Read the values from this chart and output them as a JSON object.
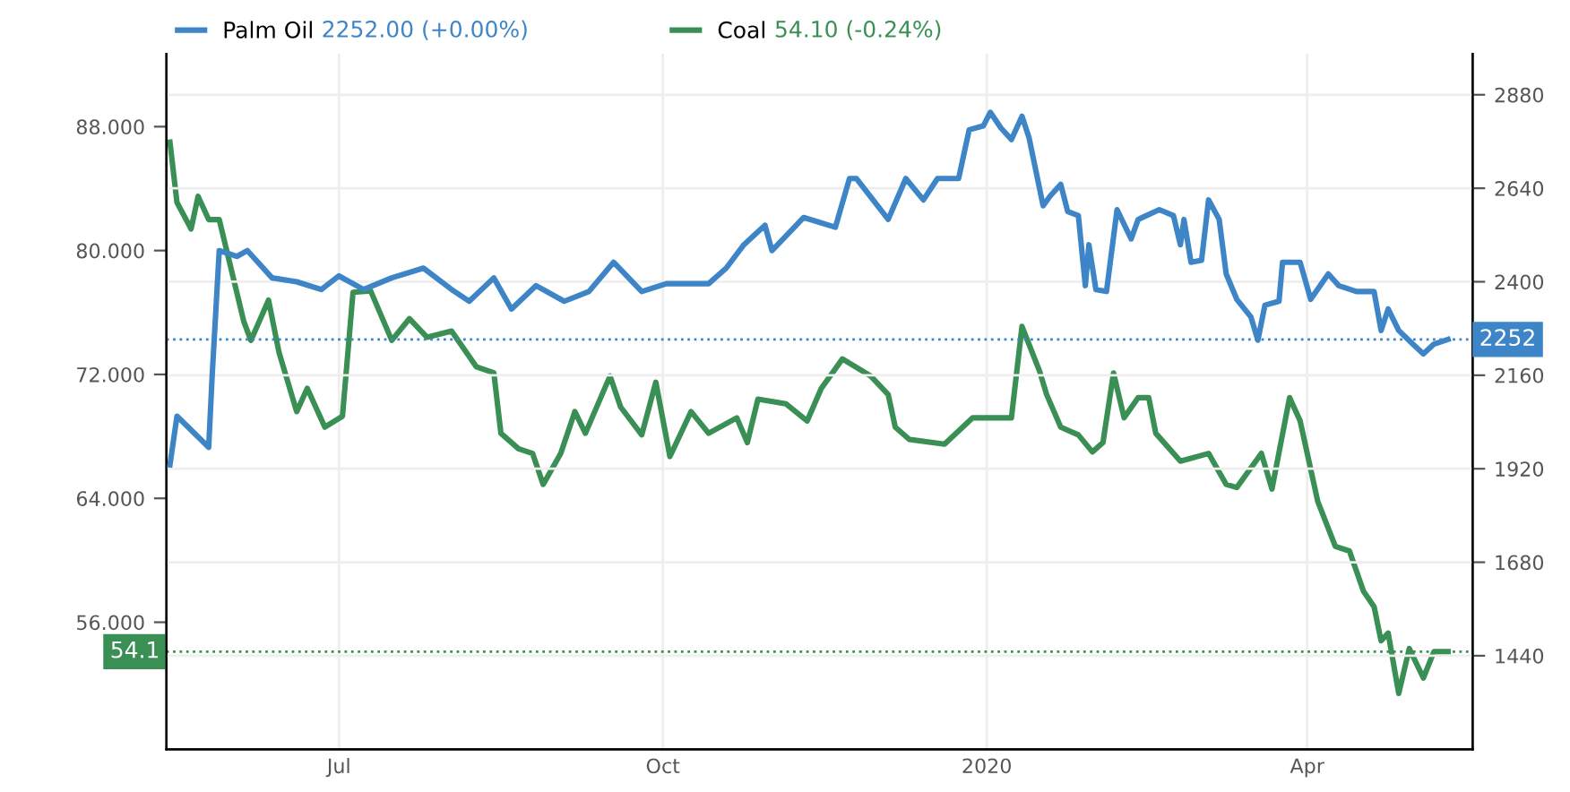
{
  "chart_data": {
    "type": "line",
    "xlim": [
      "2019-05-13",
      "2020-05-18"
    ],
    "xticks": [
      {
        "value": "2019-07-01",
        "label": "Jul"
      },
      {
        "value": "2019-10-01",
        "label": "Oct"
      },
      {
        "value": "2020-01-01",
        "label": "2020"
      },
      {
        "value": "2020-04-01",
        "label": "Apr"
      }
    ],
    "ylim": [
      47.8,
      92.7
    ],
    "yticks": [
      {
        "value": 56,
        "label": "56.000"
      },
      {
        "value": 64,
        "label": "64.000"
      },
      {
        "value": 72,
        "label": "72.000"
      },
      {
        "value": 80,
        "label": "80.000"
      },
      {
        "value": 88,
        "label": "88.000"
      }
    ],
    "y2lim": [
      1200,
      2985
    ],
    "y2ticks": [
      1440,
      1680,
      1920,
      2160,
      2400,
      2640,
      2880
    ],
    "grid": true,
    "legend": "top left",
    "marker": "none",
    "line_style": "solid",
    "annotations": [
      "2252.00 (+0.00%)",
      "54.10 (-0.24%)"
    ],
    "ref_lines": [
      {
        "axis": "y2",
        "value": 2252,
        "label": "2252",
        "color": "#3d85c6",
        "line_style": "dotted"
      },
      {
        "axis": "y",
        "value": 54.1,
        "label": "54.1",
        "color": "#3a8f55",
        "line_style": "dotted"
      }
    ],
    "series": [
      {
        "name": "Palm Oil",
        "color": "#3d85c6",
        "axis": "y2",
        "x": [
          "2019-05-14",
          "2019-05-16",
          "2019-05-25",
          "2019-05-26",
          "2019-05-28",
          "2019-06-02",
          "2019-06-05",
          "2019-06-12",
          "2019-06-19",
          "2019-06-26",
          "2019-07-01",
          "2019-07-08",
          "2019-07-16",
          "2019-07-25",
          "2019-08-02",
          "2019-08-07",
          "2019-08-14",
          "2019-08-19",
          "2019-08-26",
          "2019-09-03",
          "2019-09-10",
          "2019-09-17",
          "2019-09-25",
          "2019-10-02",
          "2019-10-14",
          "2019-10-19",
          "2019-10-24",
          "2019-10-30",
          "2019-11-01",
          "2019-11-10",
          "2019-11-19",
          "2019-11-23",
          "2019-11-25",
          "2019-12-04",
          "2019-12-09",
          "2019-12-14",
          "2019-12-18",
          "2019-12-24",
          "2019-12-27",
          "2019-12-31",
          "2020-01-02",
          "2020-01-05",
          "2020-01-08",
          "2020-01-11",
          "2020-01-13",
          "2020-01-17",
          "2020-01-19",
          "2020-01-22",
          "2020-01-24",
          "2020-01-27",
          "2020-01-29",
          "2020-01-30",
          "2020-02-01",
          "2020-02-04",
          "2020-02-07",
          "2020-02-11",
          "2020-02-13",
          "2020-02-19",
          "2020-02-23",
          "2020-02-25",
          "2020-02-26",
          "2020-02-28",
          "2020-03-02",
          "2020-03-04",
          "2020-03-07",
          "2020-03-09",
          "2020-03-12",
          "2020-03-16",
          "2020-03-18",
          "2020-03-20",
          "2020-03-24",
          "2020-03-25",
          "2020-03-30",
          "2020-04-02",
          "2020-04-07",
          "2020-04-10",
          "2020-04-15",
          "2020-04-20",
          "2020-04-22",
          "2020-04-24",
          "2020-04-27",
          "2020-05-01",
          "2020-05-04",
          "2020-05-07",
          "2020-05-11"
        ],
        "values": [
          1930,
          2055,
          1975,
          2160,
          2480,
          2465,
          2480,
          2410,
          2400,
          2380,
          2415,
          2380,
          2410,
          2435,
          2380,
          2350,
          2410,
          2330,
          2390,
          2350,
          2375,
          2450,
          2375,
          2395,
          2395,
          2435,
          2495,
          2545,
          2480,
          2565,
          2540,
          2665,
          2665,
          2560,
          2665,
          2610,
          2665,
          2665,
          2790,
          2800,
          2835,
          2795,
          2765,
          2825,
          2770,
          2595,
          2620,
          2650,
          2580,
          2570,
          2390,
          2495,
          2380,
          2375,
          2585,
          2510,
          2560,
          2585,
          2570,
          2495,
          2560,
          2450,
          2455,
          2610,
          2560,
          2420,
          2355,
          2310,
          2250,
          2340,
          2350,
          2450,
          2450,
          2355,
          2420,
          2390,
          2375,
          2375,
          2275,
          2330,
          2275,
          2240,
          2215,
          2240,
          2252
        ]
      },
      {
        "name": "Coal",
        "color": "#3a8f55",
        "axis": "y",
        "x": [
          "2019-05-14",
          "2019-05-16",
          "2019-05-20",
          "2019-05-22",
          "2019-05-25",
          "2019-05-28",
          "2019-06-04",
          "2019-06-06",
          "2019-06-11",
          "2019-06-14",
          "2019-06-19",
          "2019-06-22",
          "2019-06-27",
          "2019-07-02",
          "2019-07-05",
          "2019-07-10",
          "2019-07-16",
          "2019-07-21",
          "2019-07-26",
          "2019-08-02",
          "2019-08-09",
          "2019-08-14",
          "2019-08-16",
          "2019-08-21",
          "2019-08-25",
          "2019-08-28",
          "2019-09-02",
          "2019-09-06",
          "2019-09-09",
          "2019-09-16",
          "2019-09-19",
          "2019-09-25",
          "2019-09-29",
          "2019-10-03",
          "2019-10-09",
          "2019-10-14",
          "2019-10-22",
          "2019-10-25",
          "2019-10-28",
          "2019-11-05",
          "2019-11-11",
          "2019-11-15",
          "2019-11-21",
          "2019-11-29",
          "2019-12-04",
          "2019-12-06",
          "2019-12-10",
          "2019-12-20",
          "2019-12-28",
          "2020-01-08",
          "2020-01-11",
          "2020-01-16",
          "2020-01-18",
          "2020-01-22",
          "2020-01-27",
          "2020-01-31",
          "2020-02-03",
          "2020-02-06",
          "2020-02-09",
          "2020-02-13",
          "2020-02-16",
          "2020-02-18",
          "2020-02-25",
          "2020-03-04",
          "2020-03-09",
          "2020-03-12",
          "2020-03-19",
          "2020-03-22",
          "2020-03-27",
          "2020-03-30",
          "2020-04-04",
          "2020-04-09",
          "2020-04-13",
          "2020-04-17",
          "2020-04-20",
          "2020-04-22",
          "2020-04-24",
          "2020-04-27",
          "2020-04-30",
          "2020-05-04",
          "2020-05-07",
          "2020-05-11"
        ],
        "values": [
          87.0,
          83.1,
          81.4,
          83.5,
          82.0,
          82.0,
          75.4,
          74.2,
          76.8,
          73.4,
          69.6,
          71.1,
          68.6,
          69.3,
          77.3,
          77.4,
          74.2,
          75.6,
          74.4,
          74.8,
          72.5,
          72.1,
          68.2,
          67.2,
          66.9,
          64.9,
          66.9,
          69.6,
          68.2,
          71.9,
          69.9,
          68.1,
          71.5,
          66.7,
          69.6,
          68.2,
          69.2,
          67.6,
          70.4,
          70.1,
          69.0,
          71.1,
          73.0,
          71.9,
          70.7,
          68.6,
          67.8,
          67.5,
          69.2,
          69.2,
          75.1,
          72.2,
          70.7,
          68.6,
          68.1,
          67.0,
          67.6,
          72.1,
          69.2,
          70.5,
          70.5,
          68.2,
          66.4,
          66.9,
          64.9,
          64.7,
          66.9,
          64.6,
          70.5,
          69.0,
          63.8,
          60.9,
          60.6,
          58.0,
          57.0,
          54.8,
          55.3,
          51.4,
          54.3,
          52.4,
          54.1,
          54.1
        ]
      }
    ]
  }
}
